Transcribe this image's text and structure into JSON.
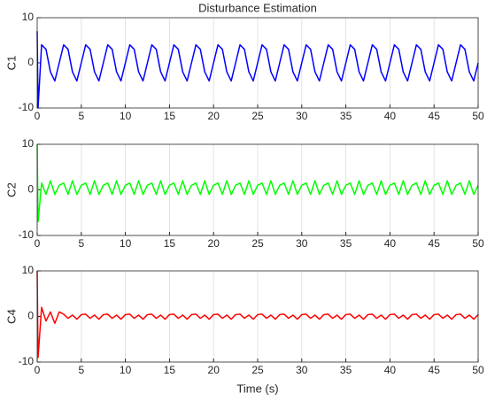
{
  "chart_data": [
    {
      "type": "line",
      "title": "Disturbance Estimation",
      "ylabel": "C1",
      "grid": "x",
      "xlim": [
        0,
        50
      ],
      "xticks": [
        0,
        5,
        10,
        15,
        20,
        25,
        30,
        35,
        40,
        45,
        50
      ],
      "ylim": [
        -10,
        10
      ],
      "yticks": [
        -10,
        0,
        10
      ],
      "x": [
        0,
        0.1,
        0.5,
        1,
        1.5,
        2,
        2.5,
        3,
        3.5,
        4,
        4.5,
        5,
        5.5,
        6,
        6.5,
        7,
        7.5,
        8,
        8.5,
        9,
        9.5,
        10,
        10.5,
        11,
        11.5,
        12,
        12.5,
        13,
        13.5,
        14,
        14.5,
        15,
        15.5,
        16,
        16.5,
        17,
        17.5,
        18,
        18.5,
        19,
        19.5,
        20,
        20.5,
        21,
        21.5,
        22,
        22.5,
        23,
        23.5,
        24,
        24.5,
        25,
        25.5,
        26,
        26.5,
        27,
        27.5,
        28,
        28.5,
        29,
        29.5,
        30,
        30.5,
        31,
        31.5,
        32,
        32.5,
        33,
        33.5,
        34,
        34.5,
        35,
        35.5,
        36,
        36.5,
        37,
        37.5,
        38,
        38.5,
        39,
        39.5,
        40,
        40.5,
        41,
        41.5,
        42,
        42.5,
        43,
        43.5,
        44,
        44.5,
        45,
        45.5,
        46,
        46.5,
        47,
        47.5,
        48,
        48.5,
        49,
        49.5,
        50
      ],
      "series": [
        {
          "color": "#0000ff",
          "values": [
            7,
            -10,
            4,
            3,
            -2,
            -4,
            0,
            4,
            3,
            -2,
            -4,
            0,
            4,
            3,
            -2,
            -4,
            0,
            4,
            3,
            -2,
            -4,
            0,
            4,
            3,
            -2,
            -4,
            0,
            4,
            3,
            -2,
            -4,
            0,
            4,
            3,
            -2,
            -4,
            0,
            4,
            3,
            -2,
            -4,
            0,
            4,
            3,
            -2,
            -4,
            0,
            4,
            3,
            -2,
            -4,
            0,
            4,
            3,
            -2,
            -4,
            0,
            4,
            3,
            -2,
            -4,
            0,
            4,
            3,
            -2,
            -4,
            0,
            4,
            3,
            -2,
            -4,
            0,
            4,
            3,
            -2,
            -4,
            0,
            4,
            3,
            -2,
            -4,
            0,
            4,
            3,
            -2,
            -4,
            0,
            4,
            3,
            -2,
            -4,
            0,
            4,
            3,
            -2,
            -4,
            0,
            4,
            3,
            -2,
            -4,
            0
          ]
        }
      ]
    },
    {
      "type": "line",
      "ylabel": "C2",
      "grid": "x",
      "xlim": [
        0,
        50
      ],
      "xticks": [
        0,
        5,
        10,
        15,
        20,
        25,
        30,
        35,
        40,
        45,
        50
      ],
      "ylim": [
        -10,
        10
      ],
      "yticks": [
        -10,
        0,
        10
      ],
      "x": [
        0,
        0.1,
        0.5,
        1,
        1.5,
        2,
        2.5,
        3,
        3.5,
        4,
        4.5,
        5,
        5.5,
        6,
        6.5,
        7,
        7.5,
        8,
        8.5,
        9,
        9.5,
        10,
        10.5,
        11,
        11.5,
        12,
        12.5,
        13,
        13.5,
        14,
        14.5,
        15,
        15.5,
        16,
        16.5,
        17,
        17.5,
        18,
        18.5,
        19,
        19.5,
        20,
        20.5,
        21,
        21.5,
        22,
        22.5,
        23,
        23.5,
        24,
        24.5,
        25,
        25.5,
        26,
        26.5,
        27,
        27.5,
        28,
        28.5,
        29,
        29.5,
        30,
        30.5,
        31,
        31.5,
        32,
        32.5,
        33,
        33.5,
        34,
        34.5,
        35,
        35.5,
        36,
        36.5,
        37,
        37.5,
        38,
        38.5,
        39,
        39.5,
        40,
        40.5,
        41,
        41.5,
        42,
        42.5,
        43,
        43.5,
        44,
        44.5,
        45,
        45.5,
        46,
        46.5,
        47,
        47.5,
        48,
        48.5,
        49,
        49.5,
        50
      ],
      "series": [
        {
          "color": "#00ff00",
          "values": [
            10,
            -7,
            1.5,
            -1,
            2,
            -1,
            1,
            1.5,
            -1,
            2,
            -1,
            1,
            1.5,
            -1,
            2,
            -1,
            1,
            1.5,
            -1,
            2,
            -1,
            1,
            1.5,
            -1,
            2,
            -1,
            1,
            1.5,
            -1,
            2,
            -1,
            1,
            1.5,
            -1,
            2,
            -1,
            1,
            1.5,
            -1,
            2,
            -1,
            1,
            1.5,
            -1,
            2,
            -1,
            1,
            1.5,
            -1,
            2,
            -1,
            1,
            1.5,
            -1,
            2,
            -1,
            1,
            1.5,
            -1,
            2,
            -1,
            1,
            1.5,
            -1,
            2,
            -1,
            1,
            1.5,
            -1,
            2,
            -1,
            1,
            1.5,
            -1,
            2,
            -1,
            1,
            1.5,
            -1,
            2,
            -1,
            1,
            1.5,
            -1,
            2,
            -1,
            1,
            1.5,
            -1,
            2,
            -1,
            1,
            1.5,
            -1,
            2,
            -1,
            1,
            1.5,
            -1,
            2,
            -1,
            1
          ]
        }
      ]
    },
    {
      "type": "line",
      "ylabel": "C4",
      "xlabel": "Time (s)",
      "grid": "x",
      "xlim": [
        0,
        50
      ],
      "xticks": [
        0,
        5,
        10,
        15,
        20,
        25,
        30,
        35,
        40,
        45,
        50
      ],
      "ylim": [
        -10,
        10
      ],
      "yticks": [
        -10,
        0,
        10
      ],
      "x": [
        0,
        0.1,
        0.5,
        1,
        1.5,
        2,
        2.5,
        3,
        3.5,
        4,
        4.5,
        5,
        5.5,
        6,
        6.5,
        7,
        7.5,
        8,
        8.5,
        9,
        9.5,
        10,
        10.5,
        11,
        11.5,
        12,
        12.5,
        13,
        13.5,
        14,
        14.5,
        15,
        15.5,
        16,
        16.5,
        17,
        17.5,
        18,
        18.5,
        19,
        19.5,
        20,
        20.5,
        21,
        21.5,
        22,
        22.5,
        23,
        23.5,
        24,
        24.5,
        25,
        25.5,
        26,
        26.5,
        27,
        27.5,
        28,
        28.5,
        29,
        29.5,
        30,
        30.5,
        31,
        31.5,
        32,
        32.5,
        33,
        33.5,
        34,
        34.5,
        35,
        35.5,
        36,
        36.5,
        37,
        37.5,
        38,
        38.5,
        39,
        39.5,
        40,
        40.5,
        41,
        41.5,
        42,
        42.5,
        43,
        43.5,
        44,
        44.5,
        45,
        45.5,
        46,
        46.5,
        47,
        47.5,
        48,
        48.5,
        49,
        49.5,
        50
      ],
      "series": [
        {
          "color": "#ff0000",
          "values": [
            10,
            -9,
            2,
            -1,
            1,
            -1.5,
            1,
            0.5,
            -0.4,
            0.3,
            -0.6,
            0.4,
            0.5,
            -0.4,
            0.3,
            -0.6,
            0.4,
            0.5,
            -0.4,
            0.3,
            -0.6,
            0.4,
            0.5,
            -0.4,
            0.3,
            -0.6,
            0.4,
            0.5,
            -0.4,
            0.3,
            -0.6,
            0.4,
            0.5,
            -0.4,
            0.3,
            -0.6,
            0.4,
            0.5,
            -0.4,
            0.3,
            -0.6,
            0.4,
            0.5,
            -0.4,
            0.3,
            -0.6,
            0.4,
            0.5,
            -0.4,
            0.3,
            -0.6,
            0.4,
            0.5,
            -0.4,
            0.3,
            -0.6,
            0.4,
            0.5,
            -0.4,
            0.3,
            -0.6,
            0.4,
            0.5,
            -0.4,
            0.3,
            -0.6,
            0.4,
            0.5,
            -0.4,
            0.3,
            -0.6,
            0.4,
            0.5,
            -0.4,
            0.3,
            -0.6,
            0.4,
            0.5,
            -0.4,
            0.3,
            -0.6,
            0.4,
            0.5,
            -0.4,
            0.3,
            -0.6,
            0.4,
            0.5,
            -0.4,
            0.3,
            -0.6,
            0.4,
            0.5,
            -0.4,
            0.3,
            -0.6,
            0.4,
            0.5,
            -0.4,
            0.3,
            -0.6,
            0.4
          ]
        }
      ]
    }
  ]
}
